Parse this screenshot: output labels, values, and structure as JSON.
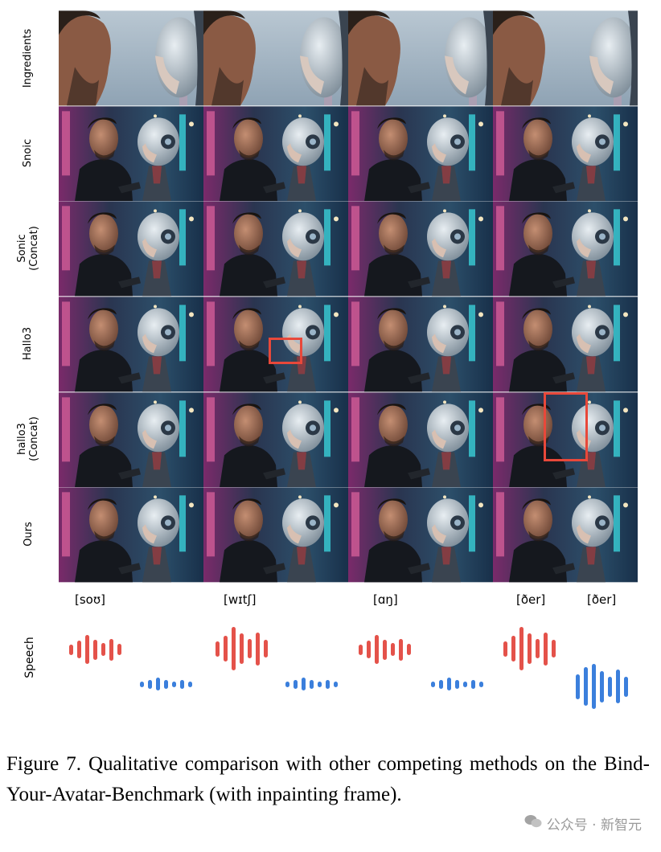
{
  "rows": [
    {
      "label": "Ingredients"
    },
    {
      "label": "Snoic"
    },
    {
      "label": "Sonic\n(Concat)"
    },
    {
      "label": "Hallo3"
    },
    {
      "label": "hallo3\n(Concat)"
    },
    {
      "label": "Ours"
    }
  ],
  "phonemes": [
    "[soʊ]",
    "[wɪtʃ]",
    "[ɑŋ]",
    "[ðer]",
    "[ðer]"
  ],
  "speech_label": "Speech",
  "colors": {
    "red_wave": "#e4524a",
    "blue_wave": "#3b7fdc",
    "highlight_box": "#e8483a"
  },
  "caption": "Figure 7. Qualitative comparison with other competing methods on the Bind-Your-Avatar-Benchmark (with inpainting frame).",
  "watermark": "公众号 · 新智元"
}
